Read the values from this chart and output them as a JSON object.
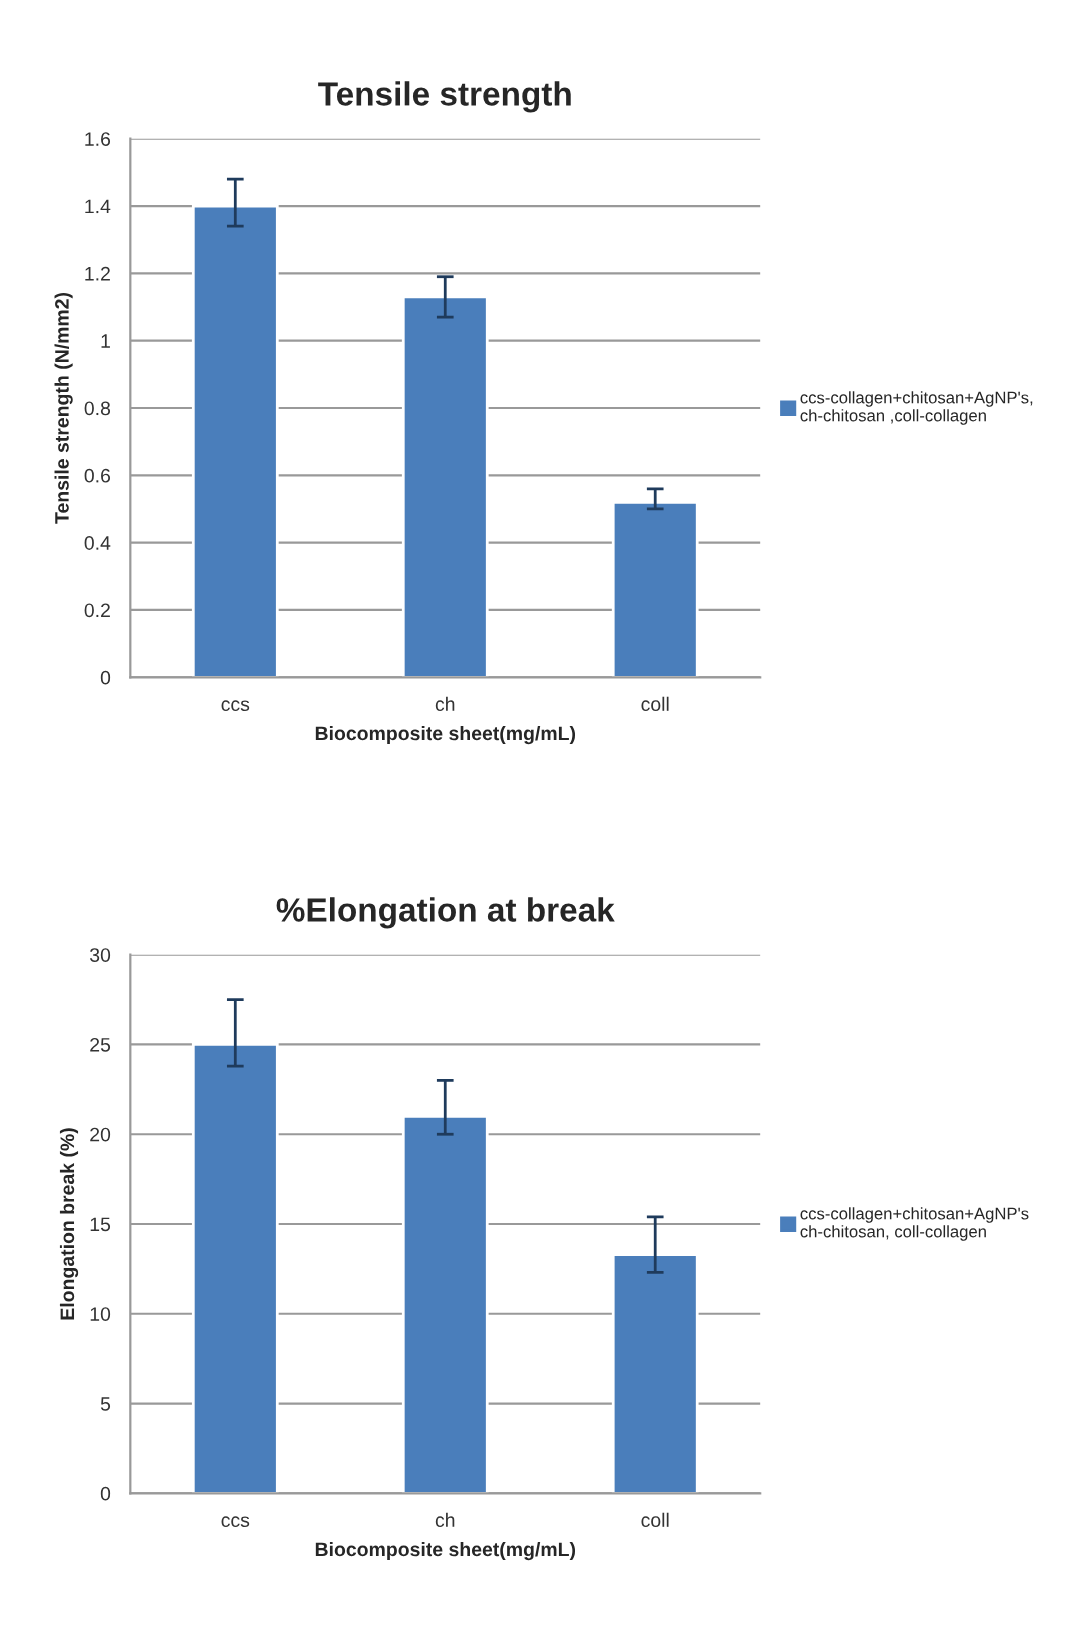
{
  "chart_data": [
    {
      "type": "bar",
      "title": "Tensile strength",
      "xlabel": "Biocomposite sheet(mg/mL)",
      "ylabel": "Tensile strength (N/mm2)",
      "categories": [
        "ccs",
        "ch",
        "coll"
      ],
      "series": [
        {
          "name": "ccs-collagen+chitosan+AgNP's,\nch-chitosan ,coll-collagen",
          "color": "#4a7ebb",
          "values": [
            1.4,
            1.13,
            0.52
          ],
          "errors": [
            [
              1.34,
              1.48
            ],
            [
              1.07,
              1.19
            ],
            [
              0.5,
              0.56
            ]
          ]
        }
      ],
      "ylim": [
        0,
        1.6
      ],
      "yticks": [
        0,
        0.2,
        0.4,
        0.6,
        0.8,
        1,
        1.2,
        1.4,
        1.6
      ],
      "grid": "y",
      "legend": "right"
    },
    {
      "type": "bar",
      "title": "%Elongation at break",
      "xlabel": "Biocomposite sheet(mg/mL)",
      "ylabel": "Elongation break (%)",
      "categories": [
        "ccs",
        "ch",
        "coll"
      ],
      "series": [
        {
          "name": "ccs-collagen+chitosan+AgNP's\nch-chitosan, coll-collagen",
          "color": "#4a7ebb",
          "values": [
            25,
            21,
            13.3
          ],
          "errors": [
            [
              23.8,
              27.5
            ],
            [
              20,
              23
            ],
            [
              12.3,
              15.4
            ]
          ]
        }
      ],
      "ylim": [
        0,
        30
      ],
      "yticks": [
        0,
        5,
        10,
        15,
        20,
        25,
        30
      ],
      "grid": "y",
      "legend": "right"
    }
  ]
}
